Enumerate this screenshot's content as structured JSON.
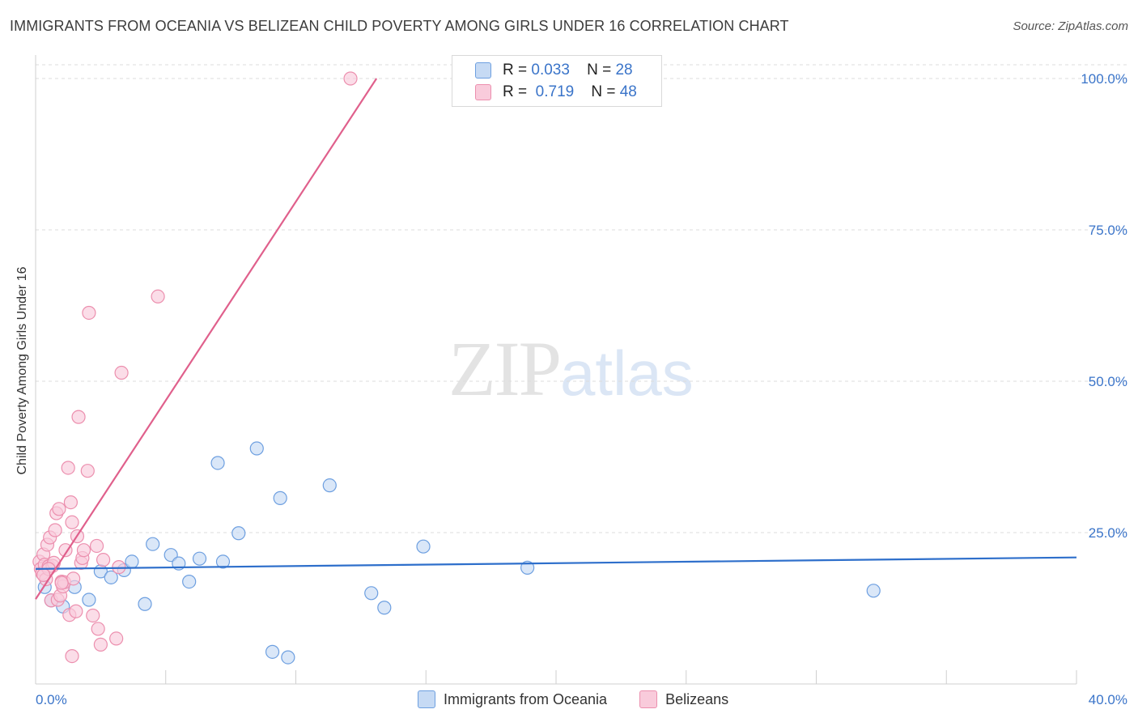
{
  "title": "IMMIGRANTS FROM OCEANIA VS BELIZEAN CHILD POVERTY AMONG GIRLS UNDER 16 CORRELATION CHART",
  "source": "Source: ZipAtlas.com",
  "watermark": {
    "zip": "ZIP",
    "atlas": "atlas"
  },
  "legend": {
    "rows": [
      {
        "r_label": "R =",
        "r_value": "0.033",
        "n_label": "N =",
        "n_value": "28"
      },
      {
        "r_label": "R =",
        "r_value": "0.719",
        "n_label": "N =",
        "n_value": "48"
      }
    ]
  },
  "bottom_legend": [
    "Immigrants from Oceania",
    "Belizeans"
  ],
  "chart_data": {
    "type": "scatter",
    "title": "IMMIGRANTS FROM OCEANIA VS BELIZEAN CHILD POVERTY AMONG GIRLS UNDER 16 CORRELATION CHART",
    "xlabel": "",
    "ylabel": "Child Poverty Among Girls Under 16",
    "xlim": [
      0,
      40
    ],
    "ylim": [
      0,
      100
    ],
    "x_tick_labels": [
      "0.0%",
      "40.0%"
    ],
    "y_tick_labels": [
      {
        "value": 25,
        "label": "25.0%"
      },
      {
        "value": 50,
        "label": "50.0%"
      },
      {
        "value": 75,
        "label": "75.0%"
      },
      {
        "value": 100,
        "label": "100.0%"
      }
    ],
    "grid": true,
    "series": [
      {
        "name": "Immigrants from Oceania",
        "color": "#6d9fe0",
        "fill": "#c6daf4",
        "trend_color": "#2e6fcb",
        "trend": {
          "x0": 0,
          "y0": 19.0,
          "x1": 40,
          "y1": 20.9
        },
        "points": [
          [
            0.35,
            16.0
          ],
          [
            0.6,
            13.8
          ],
          [
            1.05,
            12.8
          ],
          [
            1.5,
            16.0
          ],
          [
            2.05,
            13.9
          ],
          [
            2.5,
            18.6
          ],
          [
            2.9,
            17.6
          ],
          [
            3.4,
            18.8
          ],
          [
            3.7,
            20.2
          ],
          [
            4.2,
            13.2
          ],
          [
            4.5,
            23.1
          ],
          [
            5.2,
            21.3
          ],
          [
            5.5,
            19.9
          ],
          [
            5.9,
            16.9
          ],
          [
            6.3,
            20.7
          ],
          [
            7.0,
            36.5
          ],
          [
            7.2,
            20.2
          ],
          [
            7.8,
            24.9
          ],
          [
            8.5,
            38.9
          ],
          [
            9.1,
            5.3
          ],
          [
            9.4,
            30.7
          ],
          [
            9.7,
            4.4
          ],
          [
            11.3,
            32.8
          ],
          [
            12.9,
            15.0
          ],
          [
            13.4,
            12.6
          ],
          [
            14.9,
            22.7
          ],
          [
            18.9,
            19.2
          ],
          [
            32.2,
            15.4
          ]
        ]
      },
      {
        "name": "Belizeans",
        "color": "#ec8fae",
        "fill": "#f9cbdb",
        "trend_color": "#e0608c",
        "trend": {
          "x0": 0,
          "y0": 14.0,
          "x1": 13.1,
          "y1": 100
        },
        "points": [
          [
            0.15,
            20.2
          ],
          [
            0.2,
            19.0
          ],
          [
            0.25,
            18.3
          ],
          [
            0.3,
            21.4
          ],
          [
            0.35,
            19.7
          ],
          [
            0.4,
            17.3
          ],
          [
            0.45,
            23.0
          ],
          [
            0.5,
            19.4
          ],
          [
            0.55,
            24.2
          ],
          [
            0.6,
            13.8
          ],
          [
            0.65,
            19.5
          ],
          [
            0.7,
            20.0
          ],
          [
            0.75,
            25.4
          ],
          [
            0.8,
            28.2
          ],
          [
            0.85,
            13.9
          ],
          [
            0.9,
            28.9
          ],
          [
            0.95,
            14.6
          ],
          [
            1.0,
            16.9
          ],
          [
            1.05,
            16.1
          ],
          [
            1.1,
            16.8
          ],
          [
            1.15,
            22.1
          ],
          [
            1.25,
            35.7
          ],
          [
            1.3,
            11.4
          ],
          [
            1.35,
            30.0
          ],
          [
            1.4,
            26.7
          ],
          [
            1.45,
            17.4
          ],
          [
            1.55,
            12.0
          ],
          [
            1.6,
            24.4
          ],
          [
            1.65,
            44.1
          ],
          [
            1.75,
            20.0
          ],
          [
            1.8,
            20.8
          ],
          [
            1.85,
            22.1
          ],
          [
            2.0,
            35.2
          ],
          [
            2.05,
            61.3
          ],
          [
            2.2,
            11.3
          ],
          [
            2.35,
            22.8
          ],
          [
            2.4,
            9.1
          ],
          [
            2.5,
            6.5
          ],
          [
            2.6,
            20.5
          ],
          [
            1.4,
            4.6
          ],
          [
            3.1,
            7.5
          ],
          [
            3.2,
            19.3
          ],
          [
            3.3,
            51.4
          ],
          [
            4.7,
            64.0
          ],
          [
            1.0,
            16.7
          ],
          [
            0.5,
            19.0
          ],
          [
            0.3,
            18.0
          ],
          [
            12.1,
            100.0
          ]
        ]
      }
    ]
  }
}
